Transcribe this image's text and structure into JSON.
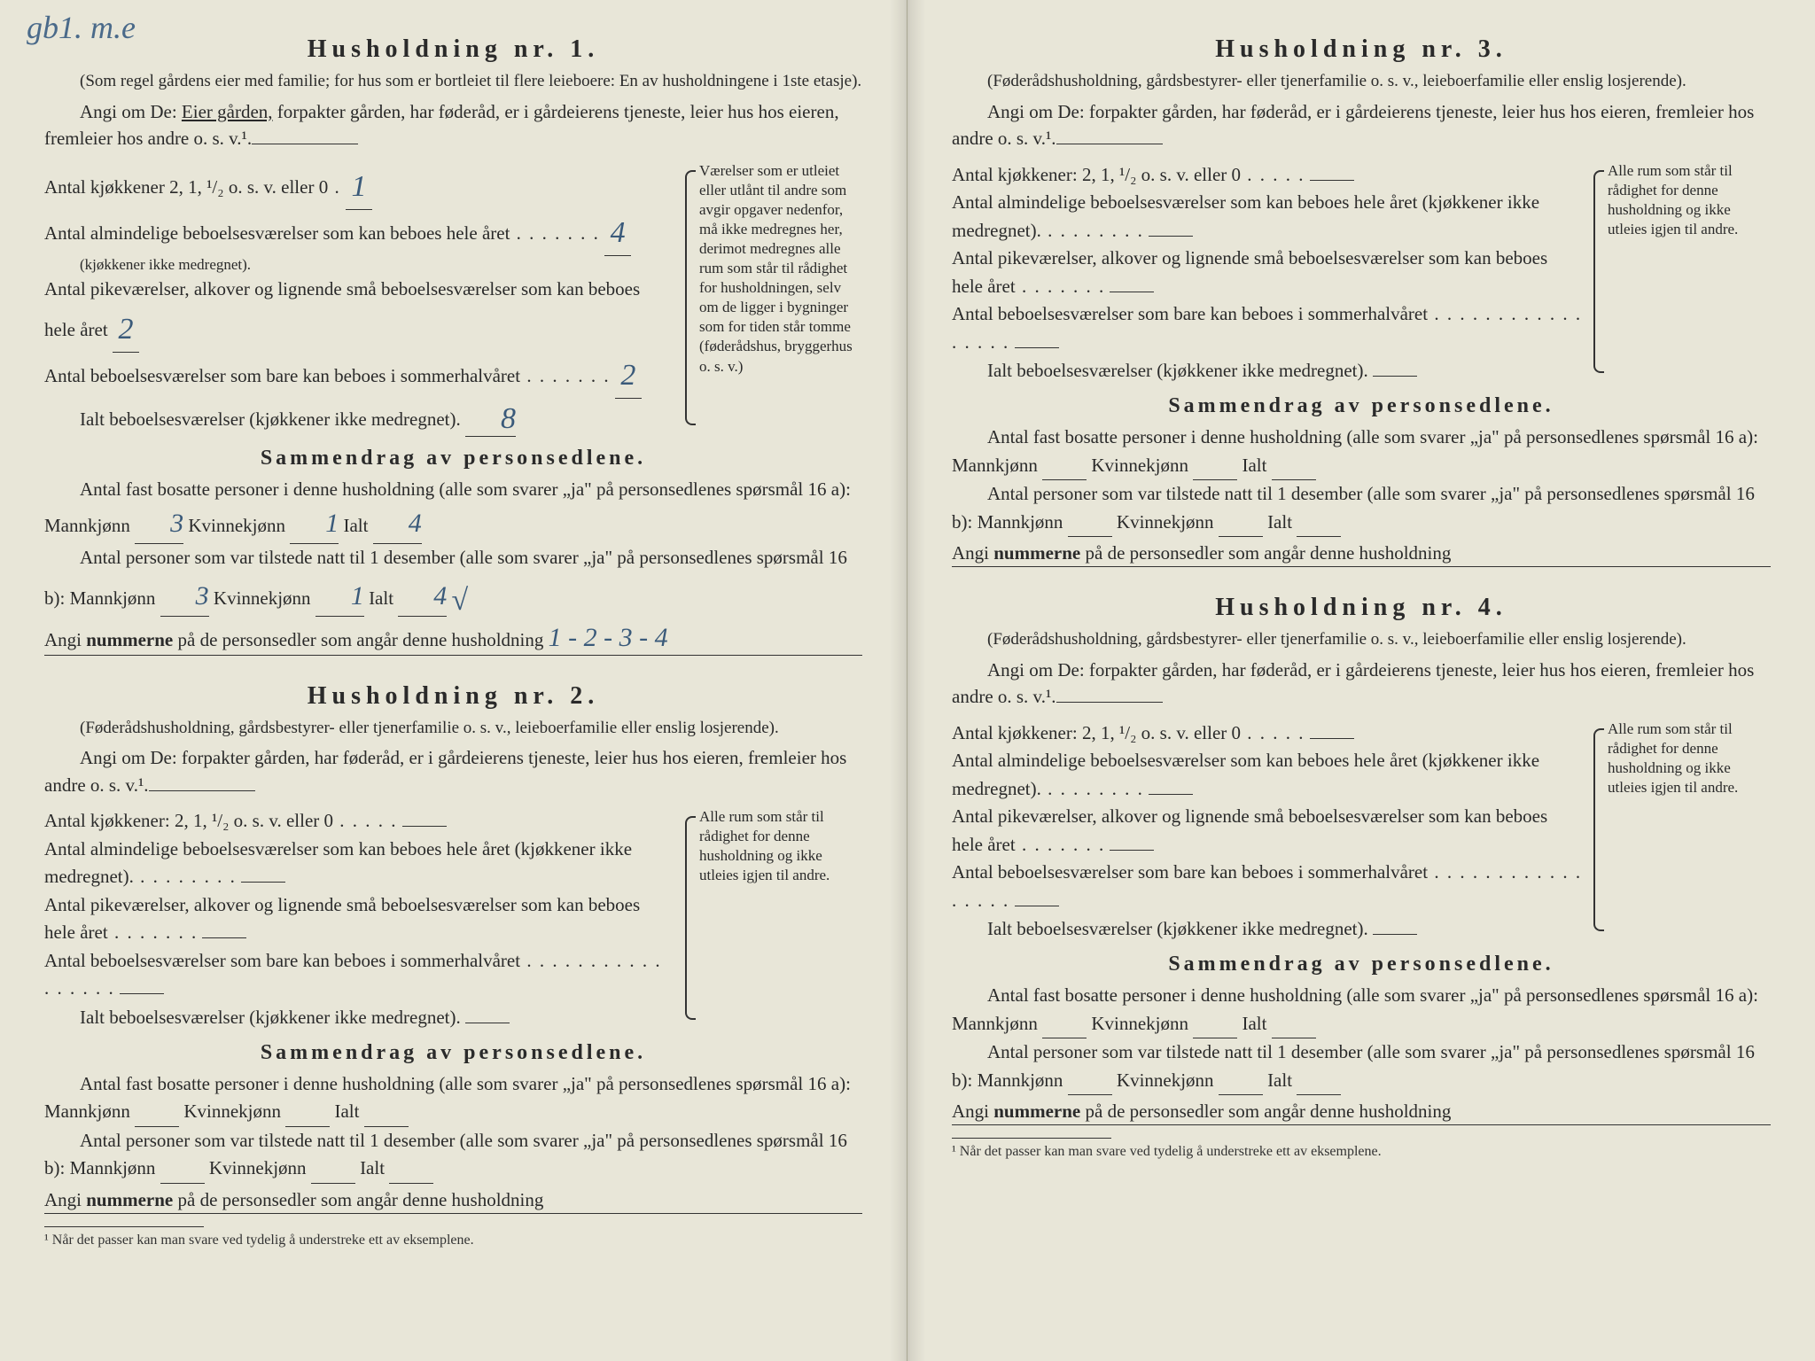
{
  "corner_note": "gb1.\nm.e",
  "households": [
    {
      "title": "Husholdning nr. 1.",
      "subtext": "(Som regel gårdens eier med familie; for hus som er bortleiet til flere leieboere: En av husholdningene i 1ste etasje).",
      "prompt_pre": "Angi om De: ",
      "prompt_underline": "Eier gården,",
      "prompt_post": " forpakter gården, har føderåd, er i gårdeierens tjeneste, leier hus hos eieren, fremleier hos andre o. s. v.¹.",
      "rooms": [
        {
          "label": "Antal kjøkkener 2, 1, ¹/₂ o. s. v. eller 0",
          "dots": " .",
          "val": "1"
        },
        {
          "label": "Antal almindelige beboelsesværelser som kan beboes hele året",
          "note": "(kjøkkener ikke medregnet).",
          "dots": " . . . . . . .",
          "val": "4"
        },
        {
          "label": "Antal pikeværelser, alkover og lignende små beboelsesværelser som kan beboes hele året",
          "dots": "",
          "val": "2"
        },
        {
          "label": "Antal beboelsesværelser som bare kan beboes i sommerhalvåret",
          "dots": " . . . . . . .",
          "val": "2"
        }
      ],
      "ialt_label": "Ialt beboelsesværelser (kjøkkener ikke medregnet).",
      "ialt_val": "8",
      "side_note": "Værelser som er utleiet eller utlånt til andre som avgir opgaver nedenfor, må ikke medregnes her, derimot medregnes alle rum som står til rådighet for husholdningen, selv om de ligger i bygninger som for tiden står tomme (føderådshus, bryggerhus o. s. v.)",
      "summary_title": "Sammendrag av personsedlene.",
      "p16a_pre": "Antal fast bosatte personer i denne husholdning (alle som svarer „ja\" på personsedlenes spørsmål 16 a): Mannkjønn",
      "p16a_m": "3",
      "p16a_k_label": "Kvinnekjønn",
      "p16a_k": "1",
      "p16a_i_label": "Ialt",
      "p16a_i": "4",
      "p16b_pre": "Antal personer som var tilstede natt til 1 desember (alle som svarer „ja\" på personsedlenes spørsmål 16 b): Mannkjønn",
      "p16b_m": "3",
      "p16b_k": "1",
      "p16b_i": "4",
      "p16b_check": "√",
      "angi_label": "Angi ",
      "angi_bold": "nummerne",
      "angi_post": " på de personsedler som angår denne husholdning",
      "angi_val": "1 - 2 - 3 - 4"
    },
    {
      "title": "Husholdning nr. 2.",
      "subtext": "(Føderådshusholdning, gårdsbestyrer- eller tjenerfamilie o. s. v., leieboerfamilie eller enslig losjerende).",
      "prompt_pre": "Angi om De:  forpakter gården, har føderåd, er i gårdeierens tjeneste, leier hus hos eieren, fremleier hos andre o. s. v.¹.",
      "rooms": [
        {
          "label": "Antal kjøkkener: 2, 1, ¹/₂ o. s. v. eller 0",
          "dots": "  . . . . .",
          "val": ""
        },
        {
          "label": "Antal almindelige beboelsesværelser som kan beboes hele året (kjøkkener ikke medregnet).",
          "dots": " . . . . . . . .",
          "val": ""
        },
        {
          "label": "Antal pikeværelser, alkover og lignende små beboelsesværelser som kan beboes hele året",
          "dots": " . . . . . . .",
          "val": ""
        },
        {
          "label": "Antal beboelsesværelser som bare kan beboes i sommerhalvåret",
          "dots": " . . . . . . . . . . . . . . . . .",
          "val": ""
        }
      ],
      "ialt_label": "Ialt beboelsesværelser (kjøkkener ikke medregnet).",
      "ialt_val": "",
      "side_note": "Alle rum som står til rådighet for denne husholdning og ikke utleies igjen til andre.",
      "summary_title": "Sammendrag av personsedlene.",
      "p16a_pre": "Antal fast bosatte personer i denne husholdning (alle som svarer „ja\" på personsedlenes spørsmål 16 a): Mannkjønn",
      "p16a_m": "",
      "p16a_k_label": "Kvinnekjønn",
      "p16a_k": "",
      "p16a_i_label": "Ialt",
      "p16a_i": "",
      "p16b_pre": "Antal personer som var tilstede natt til 1 desember (alle som svarer „ja\" på personsedlenes spørsmål 16 b): Mannkjønn",
      "p16b_m": "",
      "p16b_k": "",
      "p16b_i": "",
      "angi_label": "Angi ",
      "angi_bold": "nummerne",
      "angi_post": " på de personsedler som angår denne husholdning",
      "angi_val": ""
    },
    {
      "title": "Husholdning nr. 3.",
      "subtext": "(Føderådshusholdning, gårdsbestyrer- eller tjenerfamilie o. s. v., leieboerfamilie eller enslig losjerende).",
      "prompt_pre": "Angi om De:  forpakter gården, har føderåd, er i gårdeierens tjeneste, leier hus hos eieren, fremleier hos andre o. s. v.¹.",
      "rooms": [
        {
          "label": "Antal kjøkkener: 2, 1, ¹/₂ o. s. v. eller 0",
          "dots": "  . . . . .",
          "val": ""
        },
        {
          "label": "Antal almindelige beboelsesværelser som kan beboes hele året (kjøkkener ikke medregnet).",
          "dots": " . . . . . . . .",
          "val": ""
        },
        {
          "label": "Antal pikeværelser, alkover og lignende små beboelsesværelser som kan beboes hele året",
          "dots": " . . . . . . .",
          "val": ""
        },
        {
          "label": "Antal beboelsesværelser som bare kan beboes i sommerhalvåret",
          "dots": " . . . . . . . . . . . . . . . . .",
          "val": ""
        }
      ],
      "ialt_label": "Ialt beboelsesværelser (kjøkkener ikke medregnet).",
      "ialt_val": "",
      "side_note": "Alle rum som står til rådighet for denne husholdning og ikke utleies igjen til andre.",
      "summary_title": "Sammendrag av personsedlene.",
      "p16a_pre": "Antal fast bosatte personer i denne husholdning (alle som svarer „ja\" på personsedlenes spørsmål 16 a): Mannkjønn",
      "p16a_m": "",
      "p16a_k_label": "Kvinnekjønn",
      "p16a_k": "",
      "p16a_i_label": "Ialt",
      "p16a_i": "",
      "p16b_pre": "Antal personer som var tilstede natt til 1 desember (alle som svarer „ja\" på personsedlenes spørsmål 16 b): Mannkjønn",
      "p16b_m": "",
      "p16b_k": "",
      "p16b_i": "",
      "angi_label": "Angi ",
      "angi_bold": "nummerne",
      "angi_post": " på de personsedler som angår denne husholdning",
      "angi_val": ""
    },
    {
      "title": "Husholdning nr. 4.",
      "subtext": "(Føderådshusholdning, gårdsbestyrer- eller tjenerfamilie o. s. v., leieboerfamilie eller enslig losjerende).",
      "prompt_pre": "Angi om De:  forpakter gården, har føderåd, er i gårdeierens tjeneste, leier hus hos eieren, fremleier hos andre o. s. v.¹.",
      "rooms": [
        {
          "label": "Antal kjøkkener: 2, 1, ¹/₂ o. s. v. eller 0",
          "dots": "  . . . . .",
          "val": ""
        },
        {
          "label": "Antal almindelige beboelsesværelser som kan beboes hele året (kjøkkener ikke medregnet).",
          "dots": " . . . . . . . .",
          "val": ""
        },
        {
          "label": "Antal pikeværelser, alkover og lignende små beboelsesværelser som kan beboes hele året",
          "dots": " . . . . . . .",
          "val": ""
        },
        {
          "label": "Antal beboelsesværelser som bare kan beboes i sommerhalvåret",
          "dots": " . . . . . . . . . . . . . . . . .",
          "val": ""
        }
      ],
      "ialt_label": "Ialt beboelsesværelser (kjøkkener ikke medregnet).",
      "ialt_val": "",
      "side_note": "Alle rum som står til rådighet for denne husholdning og ikke utleies igjen til andre.",
      "summary_title": "Sammendrag av personsedlene.",
      "p16a_pre": "Antal fast bosatte personer i denne husholdning (alle som svarer „ja\" på personsedlenes spørsmål 16 a): Mannkjønn",
      "p16a_m": "",
      "p16a_k_label": "Kvinnekjønn",
      "p16a_k": "",
      "p16a_i_label": "Ialt",
      "p16a_i": "",
      "p16b_pre": "Antal personer som var tilstede natt til 1 desember (alle som svarer „ja\" på personsedlenes spørsmål 16 b): Mannkjønn",
      "p16b_m": "",
      "p16b_k": "",
      "p16b_i": "",
      "angi_label": "Angi ",
      "angi_bold": "nummerne",
      "angi_post": " på de personsedler som angår denne husholdning",
      "angi_val": ""
    }
  ],
  "footnote": "¹ Når det passer kan man svare ved tydelig å understreke ett av eksemplene.",
  "colors": {
    "paper": "#e8e6d8",
    "ink": "#2a2a2a",
    "handwriting": "#3a5a7a"
  }
}
